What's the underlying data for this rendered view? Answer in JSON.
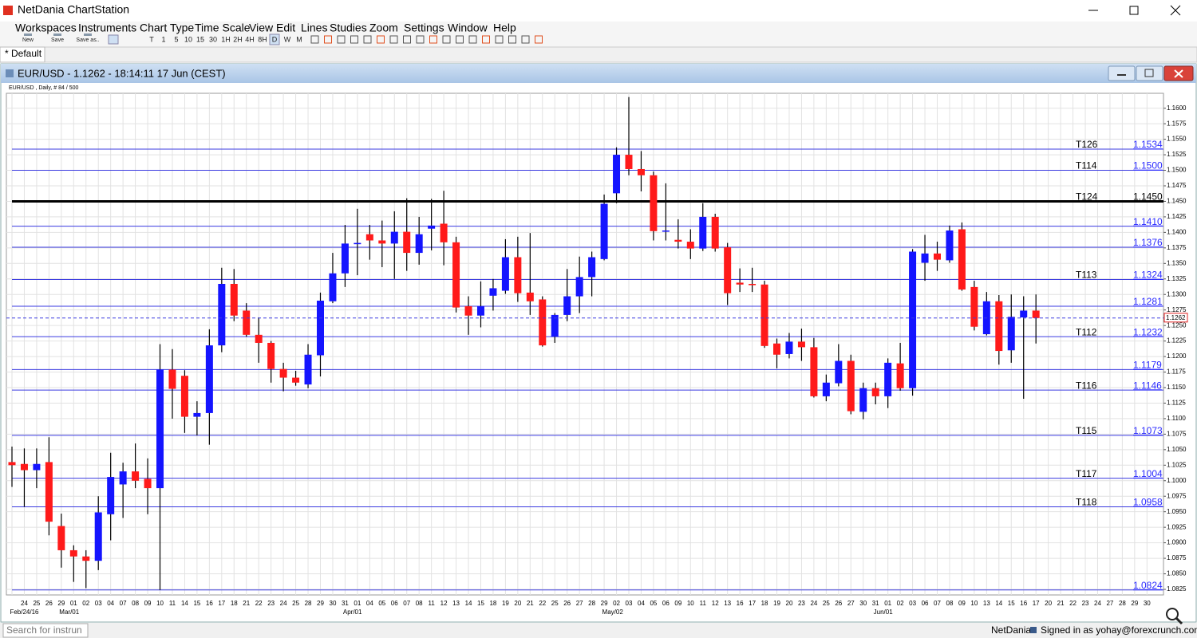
{
  "window": {
    "title": "NetDania ChartStation"
  },
  "menu": [
    "Workspaces",
    "Instruments",
    "Chart Type",
    "Time Scale",
    "View",
    "Edit",
    "Lines",
    "Studies",
    "Zoom",
    "Settings",
    "Window",
    "Help"
  ],
  "toolbar": {
    "file": [
      "New",
      "Save",
      "Save as.."
    ],
    "timescales": [
      "T",
      "1",
      "5",
      "10",
      "15",
      "30",
      "1H",
      "2H",
      "4H",
      "8H",
      "D",
      "W",
      "M"
    ]
  },
  "tab": "* Default",
  "chart_window": {
    "title": "EUR/USD - 1.1262 - 18:14:11  17 Jun (CEST)"
  },
  "status": {
    "search": "Search for instrun",
    "brand": "NetDania",
    "signed_in": "Signed in as yohay@forexcrunch.com"
  },
  "chart_data": {
    "type": "candlestick",
    "subtitle": "EUR/USD , Daily, # 84 / 500",
    "up_color": "#1414ff",
    "down_color": "#ff1a1a",
    "grid": true,
    "categories": [
      null,
      "24",
      "25",
      "26",
      "29",
      "01",
      "02",
      "03",
      "04",
      "07",
      "08",
      "09",
      "10",
      "11",
      "14",
      "15",
      "16",
      "17",
      "18",
      "21",
      "22",
      "23",
      "24",
      "25",
      "28",
      "29",
      "30",
      "31",
      "01",
      "04",
      "05",
      "06",
      "07",
      "08",
      "11",
      "12",
      "13",
      "14",
      "15",
      "18",
      "19",
      "20",
      "21",
      "22",
      "25",
      "26",
      "27",
      "28",
      "29",
      "02",
      "03",
      "04",
      "05",
      "06",
      "09",
      "10",
      "11",
      "12",
      "13",
      "16",
      "17",
      "18",
      "19",
      "20",
      "23",
      "24",
      "25",
      "26",
      "27",
      "30",
      "31",
      "01",
      "02",
      "03",
      "06",
      "07",
      "08",
      "09",
      "10",
      "13",
      "14",
      "15",
      "16",
      "17",
      "20",
      "21",
      "22",
      "23",
      "24",
      "27",
      "28",
      "29",
      "30"
    ],
    "month_labels": [
      null,
      "Feb/24/16",
      null,
      null,
      null,
      "Mar/01",
      null,
      null,
      null,
      null,
      null,
      null,
      null,
      null,
      null,
      null,
      null,
      null,
      null,
      null,
      null,
      null,
      null,
      null,
      null,
      null,
      null,
      null,
      "Apr/01",
      null,
      null,
      null,
      null,
      null,
      null,
      null,
      null,
      null,
      null,
      null,
      null,
      null,
      null,
      null,
      null,
      null,
      null,
      null,
      null,
      "May/02",
      null,
      null,
      null,
      null,
      null,
      null,
      null,
      null,
      null,
      null,
      null,
      null,
      null,
      null,
      null,
      null,
      null,
      null,
      null,
      null,
      null,
      "Jun/01",
      null,
      null,
      null,
      null,
      null,
      null,
      null,
      null,
      null,
      null,
      null,
      null,
      null,
      null,
      null,
      null,
      null,
      null,
      null,
      null,
      null
    ],
    "open": [
      1.103,
      1.1027,
      1.1017,
      1.103,
      1.0927,
      1.0888,
      1.0878,
      1.0871,
      1.0946,
      1.0994,
      1.1015,
      1.1003,
      1.0988,
      1.1179,
      1.1169,
      1.1103,
      1.1109,
      1.1218,
      1.1317,
      1.1274,
      1.1235,
      1.1222,
      1.118,
      1.1166,
      1.1155,
      1.1202,
      1.1289,
      1.1334,
      1.1381,
      1.1397,
      1.1387,
      1.1382,
      1.1401,
      1.1367,
      1.1406,
      1.1414,
      1.1384,
      1.1281,
      1.1266,
      1.1298,
      1.1306,
      1.136,
      1.1303,
      1.1292,
      1.1232,
      1.1267,
      1.1297,
      1.1328,
      1.1357,
      1.1463,
      1.1525,
      1.1502,
      1.1492,
      1.1402,
      1.1388,
      1.1385,
      1.1374,
      1.1425,
      1.1376,
      1.1319,
      1.1317,
      1.1316,
      1.1221,
      1.1204,
      1.1224,
      1.1215,
      1.1136,
      1.1157,
      1.1193,
      1.1111,
      1.1149,
      1.1136,
      1.1189,
      1.1149,
      1.1351,
      1.1366,
      1.1355,
      1.1405,
      1.1312,
      1.1236,
      1.1289,
      1.121,
      1.1263,
      1.1274,
      null,
      null,
      null,
      null,
      null,
      null,
      null,
      null,
      null
    ],
    "high": [
      1.1055,
      1.1052,
      1.1052,
      1.107,
      1.0947,
      1.0896,
      1.0888,
      1.0975,
      1.1045,
      1.1029,
      1.106,
      1.1036,
      1.122,
      1.1212,
      1.1178,
      1.1128,
      1.1244,
      1.1343,
      1.1341,
      1.1286,
      1.1263,
      1.1225,
      1.119,
      1.1177,
      1.122,
      1.1303,
      1.1367,
      1.1412,
      1.1438,
      1.1412,
      1.1419,
      1.1434,
      1.1455,
      1.1425,
      1.1454,
      1.1467,
      1.1393,
      1.1297,
      1.1321,
      1.1325,
      1.1389,
      1.1393,
      1.1399,
      1.1297,
      1.127,
      1.1341,
      1.1361,
      1.1369,
      1.1461,
      1.1537,
      1.1618,
      1.1531,
      1.1498,
      1.1479,
      1.1421,
      1.1405,
      1.1447,
      1.143,
      1.1383,
      1.1342,
      1.1343,
      1.1322,
      1.1229,
      1.1238,
      1.1245,
      1.123,
      1.1171,
      1.122,
      1.1203,
      1.1158,
      1.1158,
      1.1197,
      1.1222,
      1.1373,
      1.1396,
      1.1385,
      1.1411,
      1.1416,
      1.1322,
      1.1304,
      1.1299,
      1.13,
      1.1297,
      1.13,
      null,
      null,
      null,
      null,
      null,
      null,
      null,
      null,
      null
    ],
    "low": [
      1.099,
      1.0958,
      1.0988,
      1.0912,
      1.086,
      1.0837,
      1.0827,
      1.0856,
      1.0904,
      1.094,
      1.0988,
      1.0946,
      1.0824,
      1.11,
      1.1077,
      1.1073,
      1.1058,
      1.1207,
      1.1257,
      1.1232,
      1.119,
      1.1158,
      1.1144,
      1.1153,
      1.1149,
      1.1168,
      1.1286,
      1.1312,
      1.1331,
      1.1356,
      1.1344,
      1.1325,
      1.1338,
      1.1348,
      1.1371,
      1.1347,
      1.1271,
      1.1235,
      1.1247,
      1.1274,
      1.1301,
      1.1288,
      1.1267,
      1.1216,
      1.1222,
      1.1257,
      1.127,
      1.1297,
      1.1355,
      1.1447,
      1.1492,
      1.1466,
      1.1387,
      1.1387,
      1.1374,
      1.1357,
      1.137,
      1.1369,
      1.1283,
      1.1304,
      1.1304,
      1.1214,
      1.1181,
      1.1197,
      1.1193,
      1.1134,
      1.1128,
      1.1152,
      1.1107,
      1.1099,
      1.1123,
      1.1117,
      1.1145,
      1.1137,
      1.1322,
      1.1338,
      1.1351,
      1.1306,
      1.1242,
      1.1234,
      1.1187,
      1.119,
      1.1132,
      1.1221,
      null,
      null,
      null,
      null,
      null,
      null,
      null,
      null,
      null
    ],
    "close": [
      1.1025,
      1.1017,
      1.1027,
      1.0934,
      1.0888,
      1.0878,
      1.0871,
      1.0949,
      1.1006,
      1.1015,
      1.1,
      1.0988,
      1.1179,
      1.1148,
      1.1103,
      1.1109,
      1.1218,
      1.1317,
      1.1266,
      1.1235,
      1.1222,
      1.118,
      1.1166,
      1.1158,
      1.1203,
      1.129,
      1.1334,
      1.1382,
      1.1383,
      1.1387,
      1.1382,
      1.1401,
      1.1367,
      1.1397,
      1.1411,
      1.1384,
      1.1279,
      1.1266,
      1.1281,
      1.131,
      1.136,
      1.1302,
      1.1289,
      1.1218,
      1.1267,
      1.1297,
      1.1328,
      1.136,
      1.1446,
      1.1525,
      1.1502,
      1.1492,
      1.1402,
      1.1403,
      1.1385,
      1.1374,
      1.1425,
      1.1374,
      1.1302,
      1.1316,
      1.1315,
      1.1217,
      1.1203,
      1.1224,
      1.1215,
      1.1136,
      1.1158,
      1.1193,
      1.1112,
      1.1149,
      1.1136,
      1.119,
      1.1149,
      1.1369,
      1.1366,
      1.1356,
      1.1403,
      1.1308,
      1.1248,
      1.1289,
      1.1209,
      1.1264,
      1.1274,
      1.1262,
      null,
      null,
      null,
      null,
      null,
      null,
      null,
      null,
      null
    ],
    "ylim": [
      1.0816,
      1.1624
    ],
    "yticks": [
      1.0825,
      {
        "value": 1.085,
        "label": "1.0850"
      },
      1.0875,
      {
        "value": 1.09,
        "label": "1.0900"
      },
      1.0925,
      {
        "value": 1.095,
        "label": "1.0950"
      },
      1.0975,
      {
        "value": 1.1,
        "label": "1.1000"
      },
      1.1025,
      {
        "value": 1.105,
        "label": "1.1050"
      },
      1.1075,
      {
        "value": 1.11,
        "label": "1.1100"
      },
      1.1125,
      {
        "value": 1.115,
        "label": "1.1150"
      },
      1.1175,
      {
        "value": 1.12,
        "label": "1.1200"
      },
      1.1225,
      {
        "value": 1.125,
        "label": "1.1250"
      },
      1.1275,
      {
        "value": 1.13,
        "label": "1.1300"
      },
      1.1325,
      {
        "value": 1.135,
        "label": "1.1350"
      },
      1.1375,
      {
        "value": 1.14,
        "label": "1.1400"
      },
      1.1425,
      {
        "value": 1.145,
        "label": "1.1450"
      },
      1.1475,
      {
        "value": 1.15,
        "label": "1.1500"
      },
      1.1525,
      {
        "value": 1.155,
        "label": "1.1550"
      },
      1.1575,
      {
        "value": 1.16,
        "label": "1.1600"
      }
    ],
    "levels": [
      {
        "name": "T126",
        "value": 1.1534,
        "color": "#3a3ae0"
      },
      {
        "name": "T114",
        "value": 1.15,
        "value_label": "1.1500",
        "color": "#3a3ae0"
      },
      {
        "name": "T124",
        "value": 1.145,
        "value_label": "1.1450",
        "color": "#000000",
        "width": 3
      },
      {
        "value": 1.141,
        "value_label": "1.1410",
        "color": "#3a3ae0"
      },
      {
        "value": 1.1376,
        "color": "#3a3ae0"
      },
      {
        "name": "T113",
        "value": 1.1324,
        "color": "#3a3ae0"
      },
      {
        "value": 1.1281,
        "color": "#3a3ae0"
      },
      {
        "name": "T112",
        "value": 1.1232,
        "color": "#3a3ae0"
      },
      {
        "value": 1.1179,
        "color": "#3a3ae0"
      },
      {
        "name": "T116",
        "value": 1.1146,
        "color": "#3a3ae0"
      },
      {
        "name": "T115",
        "value": 1.1073,
        "color": "#3a3ae0"
      },
      {
        "name": "T117",
        "value": 1.1004,
        "color": "#3a3ae0"
      },
      {
        "name": "T118",
        "value": 1.0958,
        "color": "#3a3ae0"
      },
      {
        "value": 1.0824,
        "color": "#3a3ae0"
      }
    ],
    "last_price": 1.1262
  }
}
